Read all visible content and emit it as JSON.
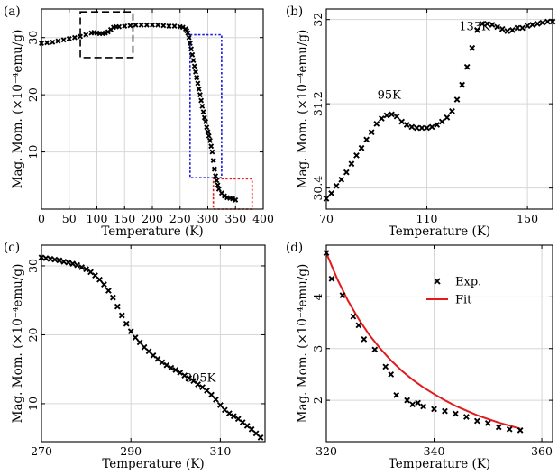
{
  "colors": {
    "marker": "#000000",
    "fit": "#e31a1c",
    "box_black": "#000000",
    "box_blue": "#1a1adb",
    "box_red": "#e31a1c",
    "grid": "#d6d6d6"
  },
  "chart_data": [
    {
      "panel_label": "(a)",
      "type": "scatter",
      "xlabel": "Temperature (K)",
      "ylabel": "Mag. Mom. (×10⁻⁴emu/g)",
      "xlim": [
        0,
        400
      ],
      "ylim": [
        0,
        35
      ],
      "xticks": [
        0,
        50,
        100,
        150,
        200,
        250,
        300,
        350,
        400
      ],
      "yticks": [
        10,
        20,
        30
      ],
      "grid": true,
      "series": [
        {
          "marker": "x",
          "x": [
            0,
            10,
            20,
            30,
            40,
            50,
            60,
            70,
            80,
            90,
            95,
            100,
            105,
            110,
            115,
            120,
            125,
            130,
            135,
            140,
            150,
            160,
            170,
            180,
            190,
            200,
            210,
            220,
            230,
            240,
            250,
            255,
            260,
            262,
            264,
            266,
            268,
            270,
            272,
            274,
            276,
            278,
            280,
            282,
            284,
            286,
            288,
            290,
            292,
            294,
            296,
            298,
            300,
            302,
            304,
            306,
            308,
            310,
            312,
            314,
            316,
            318,
            320,
            325,
            330,
            335,
            340,
            345,
            350
          ],
          "y": [
            29.0,
            29.1,
            29.2,
            29.4,
            29.6,
            29.8,
            30.0,
            30.2,
            30.5,
            30.8,
            30.9,
            30.8,
            30.7,
            30.7,
            30.8,
            31.0,
            31.4,
            31.8,
            31.9,
            31.9,
            32.0,
            32.1,
            32.2,
            32.2,
            32.2,
            32.2,
            32.2,
            32.1,
            32.0,
            32.0,
            31.9,
            31.8,
            31.5,
            31.2,
            30.8,
            30.0,
            29.0,
            28.0,
            27.0,
            26.0,
            25.0,
            24.0,
            23.0,
            22.0,
            21.0,
            20.0,
            19.0,
            18.0,
            17.0,
            16.0,
            15.3,
            14.3,
            13.5,
            12.8,
            12.0,
            11.0,
            10.0,
            8.5,
            7.0,
            5.8,
            5.0,
            4.2,
            3.5,
            2.8,
            2.3,
            2.0,
            1.9,
            1.8,
            1.6
          ]
        }
      ],
      "highlight_boxes": [
        {
          "color": "black",
          "x": [
            70,
            165
          ],
          "y": [
            26.5,
            34.5
          ]
        },
        {
          "color": "blue",
          "x": [
            268,
            325
          ],
          "y": [
            5.5,
            30.5
          ]
        },
        {
          "color": "red",
          "x": [
            310,
            380
          ],
          "y": [
            0,
            5.3
          ]
        }
      ]
    },
    {
      "panel_label": "(b)",
      "type": "scatter",
      "xlabel": "Temperature (K)",
      "ylabel": "Mag. Mom. (×10⁻⁴emu/g)",
      "xlim": [
        70,
        160
      ],
      "ylim": [
        30.2,
        32.1
      ],
      "xticks": [
        70,
        110,
        150
      ],
      "yticks": [
        30.4,
        31.2,
        32
      ],
      "grid": true,
      "annotations": [
        {
          "text": "95K",
          "x": 95,
          "y": 31.25
        },
        {
          "text": "133K",
          "x": 129,
          "y": 31.9
        }
      ],
      "series": [
        {
          "marker": "x",
          "x": [
            70,
            72,
            74,
            76,
            78,
            80,
            82,
            84,
            86,
            88,
            90,
            92,
            94,
            96,
            98,
            100,
            102,
            104,
            106,
            108,
            110,
            112,
            114,
            116,
            118,
            120,
            122,
            124,
            126,
            128,
            130,
            132,
            134,
            136,
            138,
            140,
            142,
            144,
            146,
            148,
            150,
            152,
            154,
            156,
            158,
            160
          ],
          "y": [
            30.3,
            30.35,
            30.42,
            30.48,
            30.55,
            30.63,
            30.71,
            30.78,
            30.86,
            30.93,
            31.01,
            31.06,
            31.09,
            31.1,
            31.08,
            31.03,
            31.0,
            30.98,
            30.97,
            30.97,
            30.97,
            30.98,
            31.0,
            31.03,
            31.07,
            31.13,
            31.24,
            31.38,
            31.55,
            31.73,
            31.9,
            31.96,
            31.96,
            31.95,
            31.93,
            31.91,
            31.89,
            31.9,
            31.92,
            31.92,
            31.94,
            31.95,
            31.96,
            31.97,
            31.98,
            31.98
          ]
        }
      ]
    },
    {
      "panel_label": "(c)",
      "type": "scatter",
      "xlabel": "Temperature (K)",
      "ylabel": "Mag. Mom. (×10⁻⁴emu/g)",
      "xlim": [
        270,
        320
      ],
      "ylim": [
        4.5,
        33
      ],
      "xticks": [
        270,
        290,
        310
      ],
      "yticks": [
        10,
        20,
        30
      ],
      "grid": true,
      "annotations": [
        {
          "text": "305K",
          "x": 305.5,
          "y": 13.2
        }
      ],
      "series": [
        {
          "marker": "x",
          "x": [
            270,
            271,
            272,
            273,
            274,
            275,
            276,
            277,
            278,
            279,
            280,
            281,
            282,
            283,
            284,
            285,
            286,
            287,
            288,
            289,
            290,
            291,
            292,
            293,
            294,
            295,
            296,
            297,
            298,
            299,
            300,
            301,
            302,
            303,
            304,
            305,
            306,
            307,
            308,
            309,
            310,
            311,
            312,
            313,
            314,
            315,
            316,
            317,
            318,
            319
          ],
          "y": [
            31.2,
            31.1,
            31.0,
            30.9,
            30.8,
            30.6,
            30.5,
            30.3,
            30.1,
            29.8,
            29.5,
            29.1,
            28.6,
            28.0,
            27.3,
            26.4,
            25.4,
            24.1,
            22.8,
            21.6,
            20.5,
            19.6,
            18.9,
            18.2,
            17.6,
            17.0,
            16.5,
            16.0,
            15.6,
            15.2,
            14.9,
            14.5,
            14.1,
            13.7,
            13.3,
            12.8,
            12.4,
            11.9,
            11.3,
            10.6,
            9.8,
            9.1,
            8.6,
            8.2,
            7.8,
            7.3,
            6.8,
            6.3,
            5.7,
            5.1
          ]
        }
      ]
    },
    {
      "panel_label": "(d)",
      "type": "scatter",
      "xlabel": "Temperature (K)",
      "ylabel": "Mag. Mom. (×10⁻⁴emu/g)",
      "xlim": [
        320,
        362
      ],
      "ylim": [
        1.2,
        5.0
      ],
      "xticks": [
        320,
        340,
        360
      ],
      "yticks": [
        2,
        3,
        4
      ],
      "grid": true,
      "legend": {
        "position": "top-right",
        "entries": [
          "Exp.",
          "Fit"
        ]
      },
      "series": [
        {
          "name": "Exp.",
          "marker": "x",
          "x": [
            320,
            321,
            323,
            325,
            326,
            327,
            329,
            331,
            332,
            333,
            335,
            336,
            337,
            338,
            340,
            342,
            344,
            346,
            348,
            350,
            352,
            354,
            356
          ],
          "y": [
            4.85,
            4.35,
            4.03,
            3.62,
            3.45,
            3.18,
            2.98,
            2.65,
            2.5,
            2.1,
            2.0,
            1.92,
            1.95,
            1.88,
            1.83,
            1.79,
            1.74,
            1.68,
            1.6,
            1.56,
            1.48,
            1.44,
            1.42
          ]
        },
        {
          "name": "Fit",
          "type": "line",
          "x": [
            320,
            322,
            324,
            326,
            328,
            330,
            332,
            334,
            336,
            338,
            340,
            342,
            344,
            346,
            348,
            350,
            352,
            354,
            356
          ],
          "y": [
            4.85,
            4.35,
            3.93,
            3.57,
            3.26,
            3.0,
            2.77,
            2.57,
            2.4,
            2.25,
            2.12,
            2.0,
            1.89,
            1.8,
            1.71,
            1.64,
            1.57,
            1.51,
            1.45
          ]
        }
      ]
    }
  ]
}
